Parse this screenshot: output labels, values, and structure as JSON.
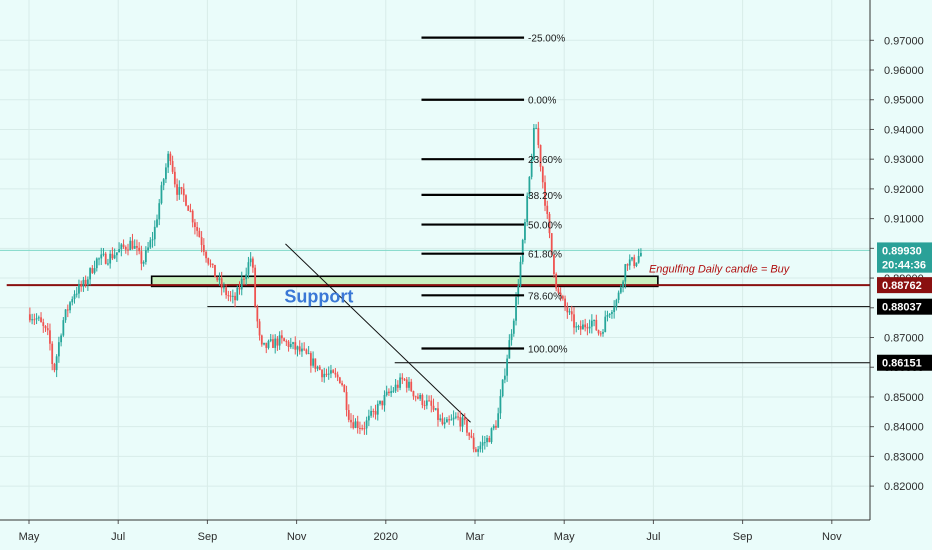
{
  "chart_data": {
    "type": "candlestick",
    "title": "",
    "y_ticks": [
      "0.97000",
      "0.96000",
      "0.95000",
      "0.94000",
      "0.93000",
      "0.92000",
      "0.91000",
      "0.90000",
      "0.89000",
      "0.88000",
      "0.87000",
      "0.86000",
      "0.85000",
      "0.84000",
      "0.83000",
      "0.82000"
    ],
    "x_ticks": [
      {
        "label": "May",
        "month": 0
      },
      {
        "label": "Jul",
        "month": 2
      },
      {
        "label": "Sep",
        "month": 4
      },
      {
        "label": "Nov",
        "month": 6
      },
      {
        "label": "2020",
        "month": 8
      },
      {
        "label": "Mar",
        "month": 10
      },
      {
        "label": "May",
        "month": 12
      },
      {
        "label": "Jul",
        "month": 14
      },
      {
        "label": "Sep",
        "month": 16
      },
      {
        "label": "Nov",
        "month": 18
      }
    ],
    "ylim": [
      0.816,
      0.9775
    ],
    "price_path": [
      [
        0,
        0.878
      ],
      [
        0.2,
        0.876
      ],
      [
        0.45,
        0.87
      ],
      [
        0.55,
        0.858
      ],
      [
        0.75,
        0.875
      ],
      [
        1.0,
        0.885
      ],
      [
        1.25,
        0.888
      ],
      [
        1.5,
        0.896
      ],
      [
        1.8,
        0.897
      ],
      [
        2.0,
        0.899
      ],
      [
        2.3,
        0.902
      ],
      [
        2.55,
        0.895
      ],
      [
        2.8,
        0.905
      ],
      [
        3.0,
        0.922
      ],
      [
        3.15,
        0.933
      ],
      [
        3.3,
        0.92
      ],
      [
        3.5,
        0.917
      ],
      [
        3.8,
        0.905
      ],
      [
        4.1,
        0.893
      ],
      [
        4.35,
        0.886
      ],
      [
        4.6,
        0.882
      ],
      [
        4.8,
        0.89
      ],
      [
        5.0,
        0.898
      ],
      [
        5.05,
        0.883
      ],
      [
        5.2,
        0.866
      ],
      [
        5.6,
        0.869
      ],
      [
        5.8,
        0.868
      ],
      [
        6.2,
        0.864
      ],
      [
        6.6,
        0.858
      ],
      [
        7.0,
        0.856
      ],
      [
        7.2,
        0.842
      ],
      [
        7.5,
        0.84
      ],
      [
        7.7,
        0.844
      ],
      [
        8.0,
        0.85
      ],
      [
        8.4,
        0.856
      ],
      [
        8.7,
        0.85
      ],
      [
        9.0,
        0.847
      ],
      [
        9.3,
        0.84
      ],
      [
        9.6,
        0.843
      ],
      [
        9.8,
        0.84
      ],
      [
        10.0,
        0.832
      ],
      [
        10.3,
        0.836
      ],
      [
        10.5,
        0.842
      ],
      [
        10.7,
        0.862
      ],
      [
        10.9,
        0.88
      ],
      [
        11.1,
        0.905
      ],
      [
        11.25,
        0.928
      ],
      [
        11.35,
        0.943
      ],
      [
        11.5,
        0.925
      ],
      [
        11.7,
        0.9
      ],
      [
        11.85,
        0.885
      ],
      [
        12.1,
        0.878
      ],
      [
        12.3,
        0.872
      ],
      [
        12.6,
        0.876
      ],
      [
        12.8,
        0.871
      ],
      [
        13.0,
        0.879
      ],
      [
        13.2,
        0.883
      ],
      [
        13.4,
        0.896
      ],
      [
        13.55,
        0.895
      ],
      [
        13.75,
        0.899
      ]
    ],
    "price_start_month": 0.02,
    "price_end_month": 13.75,
    "fib_levels": [
      {
        "label": "-25.00%",
        "price": 0.9709
      },
      {
        "label": "0.00%",
        "price": 0.95
      },
      {
        "label": "23.60%",
        "price": 0.93
      },
      {
        "label": "38.20%",
        "price": 0.918
      },
      {
        "label": "50.00%",
        "price": 0.908
      },
      {
        "label": "61.80%",
        "price": 0.8982
      },
      {
        "label": "78.60%",
        "price": 0.8842
      },
      {
        "label": "100.00%",
        "price": 0.8663
      }
    ],
    "fib_start_month": 8.8,
    "fib_end_month": 11.1,
    "price_tags": [
      {
        "label": "0.89930",
        "price": 0.8993,
        "color": "#2aa198"
      },
      {
        "label": "20:44:36",
        "price": 0.8945,
        "color": "#2aa198"
      },
      {
        "label": "0.88762",
        "price": 0.88762,
        "color": "#8a1010"
      },
      {
        "label": "0.88037",
        "price": 0.88037,
        "color": "#000000"
      },
      {
        "label": "0.86151",
        "price": 0.86151,
        "color": "#000000"
      }
    ],
    "horizontal_lines": [
      {
        "price": 0.88762,
        "color": "#8a1010",
        "from_month": -0.5
      },
      {
        "price": 0.88037,
        "color": "#000000",
        "from_month": 4.0
      },
      {
        "price": 0.86151,
        "color": "#000000",
        "from_month": 8.2
      }
    ],
    "current_price_line": {
      "price": 0.8993,
      "color": "#7fd8c8"
    },
    "support_zone": {
      "label": "Support",
      "top": 0.8906,
      "bottom": 0.8872,
      "from_month": 2.75,
      "to_month": 14.1,
      "label_month": 6.5
    },
    "trendline": {
      "from": [
        5.75,
        0.9015
      ],
      "to": [
        9.9,
        0.8415
      ]
    },
    "annotation": {
      "text": "Engulfing Daily candle = Buy",
      "month": 13.9,
      "price": 0.8932
    },
    "colors": {
      "up": "#26a69a",
      "down": "#ef5350",
      "grid": "#d8ece9",
      "support_fill": "#c8f0c0"
    }
  }
}
